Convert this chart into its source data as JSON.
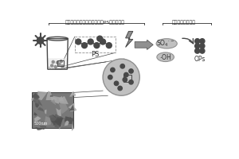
{
  "title1": "纳米地聚物材料可见光下活化PS产生自由基",
  "title2": "自由基与目标反应",
  "label_ps": "PS",
  "label_so4": "SO₄·⁻",
  "label_oh": "·OH",
  "label_ops": "OPs",
  "label_scale": "500nm",
  "bg_color": "#ffffff",
  "gray_light": "#c0c0c0",
  "gray_mid": "#909090",
  "gray_dark": "#484848",
  "gray_very_dark": "#282828",
  "text_color": "#303030"
}
